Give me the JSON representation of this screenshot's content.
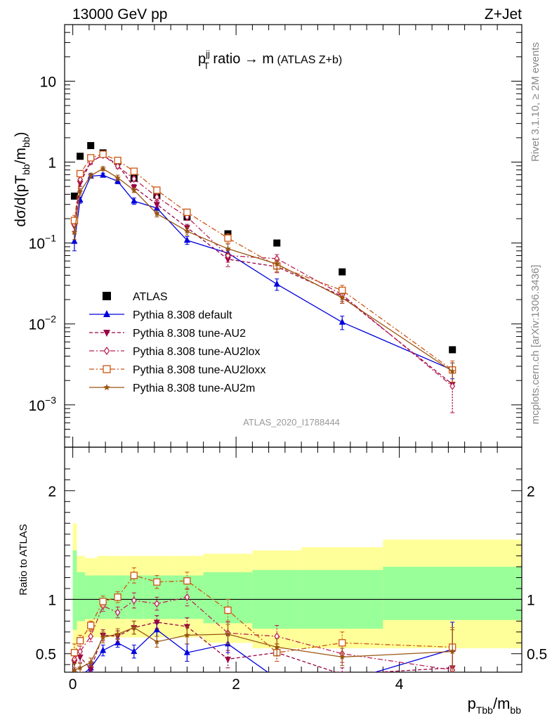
{
  "header": {
    "left": "13000 GeV pp",
    "right": "Z+Jet"
  },
  "title": {
    "p": "p",
    "sup": "jj",
    "sub": "T",
    "main": " ratio → m",
    "paren": " (ATLAS Z+b)"
  },
  "side_labels": {
    "rivet": "Rivet 3.1.10, ≥ 2M events",
    "mcplots": "mcplots.cern.ch [arXiv:1306.3436]"
  },
  "watermark": "ATLAS_2020_I1788444",
  "upper_ylabel": "dσ/d(pT_bb/m_bb)",
  "ratio_ylabel": "Ratio to ATLAS",
  "xlabel": "p_Tbb/m_bb",
  "chart_data": [
    {
      "type": "scatter",
      "panel": "main",
      "yscale": "log",
      "xlim": [
        -0.1,
        5.5
      ],
      "ylim": [
        0.0003,
        50
      ],
      "xticks": [
        0,
        2,
        4
      ],
      "yticks": [
        {
          "value": 10,
          "label": "10"
        },
        {
          "value": 1,
          "label": "1"
        },
        {
          "value": 0.1,
          "base": "10",
          "exp": "−1"
        },
        {
          "value": 0.01,
          "base": "10",
          "exp": "−2"
        },
        {
          "value": 0.001,
          "base": "10",
          "exp": "−3"
        }
      ],
      "legend_position": "bottom-left",
      "x": [
        0.02,
        0.09,
        0.22,
        0.37,
        0.55,
        0.75,
        1.03,
        1.4,
        1.9,
        2.5,
        3.3,
        4.65
      ],
      "series": [
        {
          "name": "ATLAS",
          "color": "#000000",
          "marker": "square-filled",
          "line": "none",
          "values": [
            0.38,
            1.18,
            1.6,
            1.3,
            1.02,
            0.63,
            0.39,
            0.21,
            0.13,
            0.1,
            0.044,
            0.0048
          ]
        },
        {
          "name": "Pythia 8.308 default",
          "color": "#0000dd",
          "marker": "triangle-up",
          "line": "solid",
          "values": [
            0.105,
            0.34,
            0.67,
            0.69,
            0.58,
            0.33,
            0.27,
            0.108,
            0.075,
            0.031,
            0.0105,
            0.0027
          ],
          "errors": [
            0.025,
            0.03,
            0.04,
            0.04,
            0.04,
            0.03,
            0.03,
            0.012,
            0.01,
            0.005,
            0.002,
            0.0006
          ]
        },
        {
          "name": "Pythia 8.308 tune-AU2",
          "color": "#990044",
          "marker": "triangle-down",
          "line": "dashed",
          "values": [
            0.16,
            0.55,
            1.0,
            1.22,
            0.93,
            0.49,
            0.3,
            0.155,
            0.063,
            0.051,
            0.022,
            0.0018
          ],
          "errors": [
            0.03,
            0.05,
            0.06,
            0.07,
            0.06,
            0.04,
            0.03,
            0.015,
            0.012,
            0.008,
            0.004,
            0.001
          ]
        },
        {
          "name": "Pythia 8.308 tune-AU2lox",
          "color": "#bb2255",
          "marker": "diamond-open",
          "line": "dashdot",
          "values": [
            0.17,
            0.61,
            1.02,
            1.22,
            0.89,
            0.62,
            0.37,
            0.21,
            0.07,
            0.064,
            0.023,
            0.0017
          ],
          "errors": [
            0.03,
            0.05,
            0.06,
            0.07,
            0.06,
            0.04,
            0.03,
            0.02,
            0.012,
            0.008,
            0.004,
            0.0009
          ]
        },
        {
          "name": "Pythia 8.308 tune-AU2loxx",
          "color": "#cc5511",
          "marker": "square-open",
          "line": "dashdot",
          "values": [
            0.19,
            0.72,
            1.13,
            1.25,
            1.05,
            0.77,
            0.45,
            0.24,
            0.115,
            0.052,
            0.026,
            0.0027
          ],
          "errors": [
            0.03,
            0.05,
            0.06,
            0.07,
            0.06,
            0.04,
            0.03,
            0.02,
            0.015,
            0.008,
            0.004,
            0.0008
          ]
        },
        {
          "name": "Pythia 8.308 tune-AU2m",
          "color": "#995511",
          "marker": "star",
          "line": "solid",
          "values": [
            0.135,
            0.43,
            0.68,
            0.83,
            0.64,
            0.45,
            0.23,
            0.14,
            0.085,
            0.055,
            0.021,
            0.0026
          ],
          "errors": [
            0.025,
            0.04,
            0.05,
            0.05,
            0.05,
            0.03,
            0.02,
            0.015,
            0.012,
            0.007,
            0.003,
            0.0007
          ]
        }
      ]
    },
    {
      "type": "scatter",
      "panel": "ratio",
      "yscale": "linear",
      "xlim": [
        -0.1,
        5.5
      ],
      "ylim": [
        0.33,
        2.4
      ],
      "xticks": [
        0,
        2,
        4
      ],
      "yticks": [
        0.5,
        1,
        2
      ],
      "reference_line": 1,
      "bands": {
        "edges": [
          0.0,
          0.05,
          0.15,
          0.3,
          0.45,
          0.65,
          0.87,
          1.2,
          1.6,
          2.2,
          2.8,
          3.8,
          5.5
        ],
        "green_lo": [
          0.72,
          0.8,
          0.82,
          0.82,
          0.82,
          0.82,
          0.82,
          0.82,
          0.78,
          0.73,
          0.73,
          0.81
        ],
        "green_hi": [
          1.45,
          1.25,
          1.22,
          1.22,
          1.22,
          1.22,
          1.22,
          1.22,
          1.25,
          1.27,
          1.27,
          1.3
        ],
        "yellow_lo": [
          0.4,
          0.6,
          0.65,
          0.65,
          0.65,
          0.65,
          0.65,
          0.65,
          0.6,
          0.55,
          0.55,
          0.55
        ],
        "yellow_hi": [
          1.7,
          1.4,
          1.38,
          1.4,
          1.4,
          1.4,
          1.4,
          1.4,
          1.42,
          1.45,
          1.48,
          1.55
        ],
        "inner_color": "#99ff99",
        "outer_color": "#ffff99"
      },
      "x": [
        0.02,
        0.09,
        0.22,
        0.37,
        0.55,
        0.75,
        1.03,
        1.4,
        1.9,
        2.5,
        3.3,
        4.65
      ],
      "series": [
        {
          "name": "Pythia 8.308 default",
          "color": "#0000dd",
          "marker": "triangle-up",
          "line": "solid",
          "values": [
            0.28,
            0.29,
            0.37,
            0.53,
            0.6,
            0.52,
            0.72,
            0.51,
            0.59,
            0.27,
            0.24,
            0.54
          ],
          "errors": [
            0.06,
            0.04,
            0.03,
            0.05,
            0.04,
            0.06,
            0.06,
            0.08,
            0.08,
            0.05,
            0.05,
            0.25
          ]
        },
        {
          "name": "Pythia 8.308 tune-AU2",
          "color": "#990044",
          "marker": "triangle-down",
          "line": "dashed",
          "values": [
            0.42,
            0.47,
            0.36,
            0.67,
            0.66,
            0.74,
            0.79,
            0.75,
            0.45,
            0.51,
            0.31,
            0.37
          ],
          "errors": [
            0.08,
            0.05,
            0.03,
            0.05,
            0.05,
            0.06,
            0.06,
            0.08,
            0.08,
            0.08,
            0.06,
            0.15
          ]
        },
        {
          "name": "Pythia 8.308 tune-AU2lox",
          "color": "#bb2255",
          "marker": "diamond-open",
          "line": "dashdot",
          "values": [
            0.45,
            0.52,
            0.66,
            0.94,
            0.88,
            0.99,
            0.96,
            1.02,
            0.69,
            0.66,
            0.5,
            0.35
          ],
          "errors": [
            0.08,
            0.05,
            0.05,
            0.05,
            0.05,
            0.07,
            0.06,
            0.08,
            0.1,
            0.1,
            0.08,
            0.17
          ]
        },
        {
          "name": "Pythia 8.308 tune-AU2loxx",
          "color": "#cc5511",
          "marker": "square-open",
          "line": "dashdot",
          "values": [
            0.51,
            0.62,
            0.76,
            0.98,
            1.02,
            1.22,
            1.16,
            1.17,
            0.9,
            0.51,
            0.6,
            0.56
          ],
          "errors": [
            0.08,
            0.05,
            0.04,
            0.05,
            0.05,
            0.07,
            0.06,
            0.08,
            0.1,
            0.08,
            0.1,
            0.18
          ]
        },
        {
          "name": "Pythia 8.308 tune-AU2m",
          "color": "#995511",
          "marker": "star",
          "line": "solid",
          "values": [
            0.35,
            0.37,
            0.42,
            0.65,
            0.68,
            0.74,
            0.61,
            0.67,
            0.68,
            0.56,
            0.47,
            0.52
          ],
          "errors": [
            0.06,
            0.04,
            0.04,
            0.05,
            0.05,
            0.06,
            0.05,
            0.08,
            0.09,
            0.08,
            0.08,
            0.2
          ]
        }
      ]
    }
  ]
}
